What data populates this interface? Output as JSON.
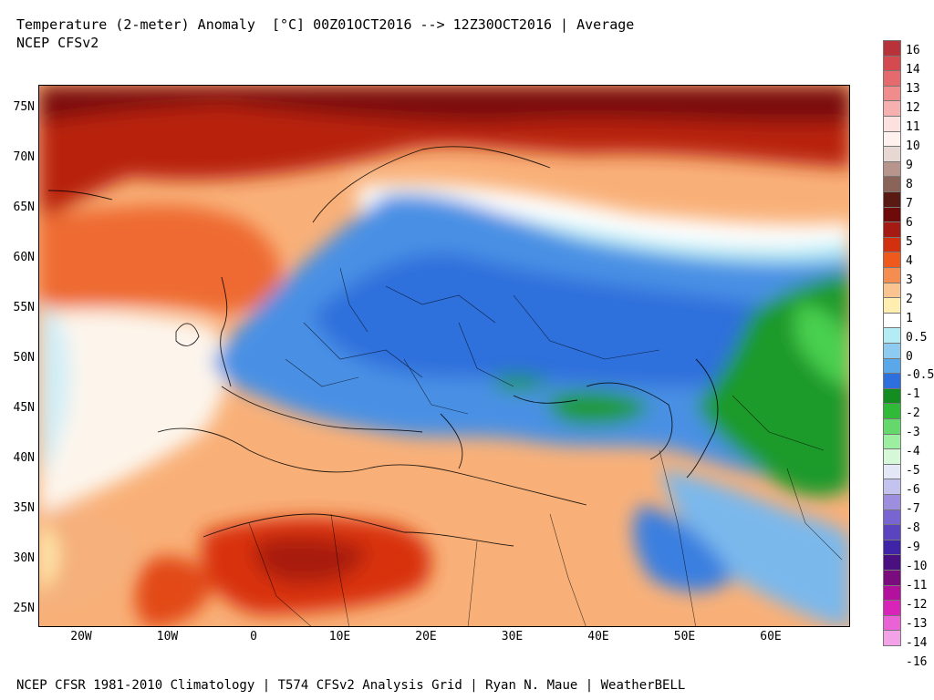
{
  "header": {
    "title": "Temperature (2-meter) Anomaly  [°C] 00Z01OCT2016 --> 12Z30OCT2016 | Average",
    "subtitle": "NCEP CFSv2"
  },
  "footer": {
    "text": "NCEP CFSR 1981-2010 Climatology | T574 CFSv2 Analysis Grid | Ryan N. Maue | WeatherBELL"
  },
  "map": {
    "lat_labels": [
      "75N",
      "70N",
      "65N",
      "60N",
      "55N",
      "50N",
      "45N",
      "40N",
      "35N",
      "30N",
      "25N"
    ],
    "lon_labels": [
      "20W",
      "10W",
      "0",
      "10E",
      "20E",
      "30E",
      "40E",
      "50E",
      "60E"
    ]
  },
  "legend": {
    "labels": [
      "16",
      "14",
      "13",
      "12",
      "11",
      "10",
      "9",
      "8",
      "7",
      "6",
      "5",
      "4",
      "3",
      "2",
      "1",
      "0.5",
      "0",
      "-0.5",
      "-1",
      "-2",
      "-3",
      "-4",
      "-5",
      "-6",
      "-7",
      "-8",
      "-9",
      "-10",
      "-11",
      "-12",
      "-13",
      "-14",
      "-16"
    ],
    "colors": [
      "#b8323a",
      "#d44a4e",
      "#e56a6e",
      "#f08c8c",
      "#f7b0b0",
      "#fde0e0",
      "#fff1ee",
      "#e8d8d4",
      "#b8958c",
      "#8a6359",
      "#5a1a14",
      "#6e0a0a",
      "#a51a12",
      "#d3300e",
      "#ef5a1c",
      "#f58d50",
      "#f9c490",
      "#ffeeb0",
      "#ffffff",
      "#b4ecf5",
      "#8ecbf0",
      "#5aa8ea",
      "#2d6fdc",
      "#138c20",
      "#2fba38",
      "#64d86a",
      "#9ceea0",
      "#d6f7d8",
      "#e4e8f6",
      "#c4c2ee",
      "#9e8ee0",
      "#7865d2",
      "#5a44c0",
      "#3f24a8",
      "#4a0f80",
      "#7b0c7e",
      "#b4109e",
      "#d824b8",
      "#ea62d6",
      "#f4a2e8"
    ]
  }
}
